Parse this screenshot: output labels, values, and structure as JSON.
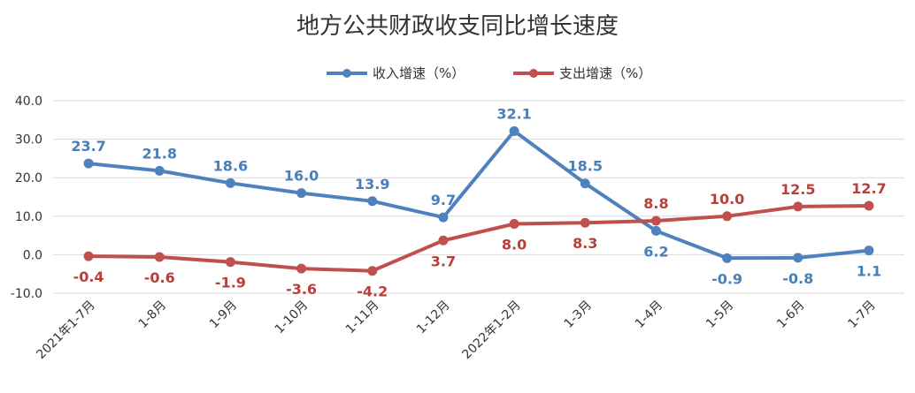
{
  "chart_data": {
    "type": "line",
    "title": "地方公共财政收支同比增长速度",
    "categories": [
      "2021年1-7月",
      "1-8月",
      "1-9月",
      "1-10月",
      "1-11月",
      "1-12月",
      "2022年1-2月",
      "1-3月",
      "1-4月",
      "1-5月",
      "1-6月",
      "1-7月"
    ],
    "series": [
      {
        "name": "收入增速（%）",
        "color": "#4f81bd",
        "label_color": "#4a7ebb",
        "values": [
          23.7,
          21.8,
          18.6,
          16.0,
          13.9,
          9.7,
          32.1,
          18.5,
          6.2,
          -0.9,
          -0.8,
          1.1
        ]
      },
      {
        "name": "支出增速（%）",
        "color": "#c0504d",
        "label_color": "#b8403b",
        "values": [
          -0.4,
          -0.6,
          -1.9,
          -3.6,
          -4.2,
          3.7,
          8.0,
          8.3,
          8.8,
          10.0,
          12.5,
          12.7
        ]
      }
    ],
    "ylim": [
      -10,
      40
    ],
    "yticks": [
      "-10.0",
      "0.0",
      "10.0",
      "20.0",
      "30.0",
      "40.0"
    ],
    "grid": true,
    "legend_position": "top-center",
    "xlabel": "",
    "ylabel": ""
  }
}
